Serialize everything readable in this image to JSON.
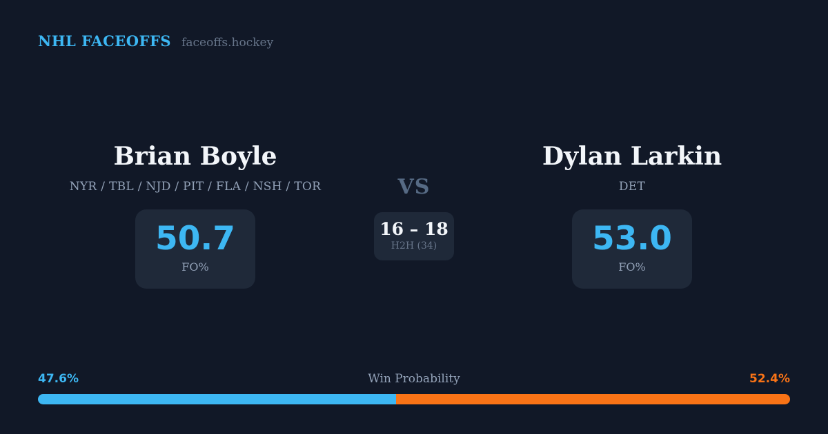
{
  "header": {
    "brand": "NHL FACEOFFS",
    "domain": "faceoffs.hockey"
  },
  "players": {
    "left": {
      "name": "Brian Boyle",
      "teams": "NYR / TBL / NJD / PIT / FLA / NSH / TOR",
      "fo_value": "50.7",
      "fo_label": "FO%"
    },
    "right": {
      "name": "Dylan Larkin",
      "teams": "DET",
      "fo_value": "53.0",
      "fo_label": "FO%"
    }
  },
  "center": {
    "vs_label": "VS",
    "h2h_score": "16 – 18",
    "h2h_label": "H2H (34)"
  },
  "win_probability": {
    "title": "Win Probability",
    "left_pct_label": "47.6%",
    "right_pct_label": "52.4%",
    "left_value": 47.6,
    "right_value": 52.4
  },
  "colors": {
    "background": "#111827",
    "card": "#1f2939",
    "accent_blue": "#3db7f3",
    "accent_orange": "#f97316",
    "text_bright": "#f3f6fa",
    "muted": "#93a2b8",
    "muted_dark": "#67758a",
    "vs_color": "#566a84"
  }
}
